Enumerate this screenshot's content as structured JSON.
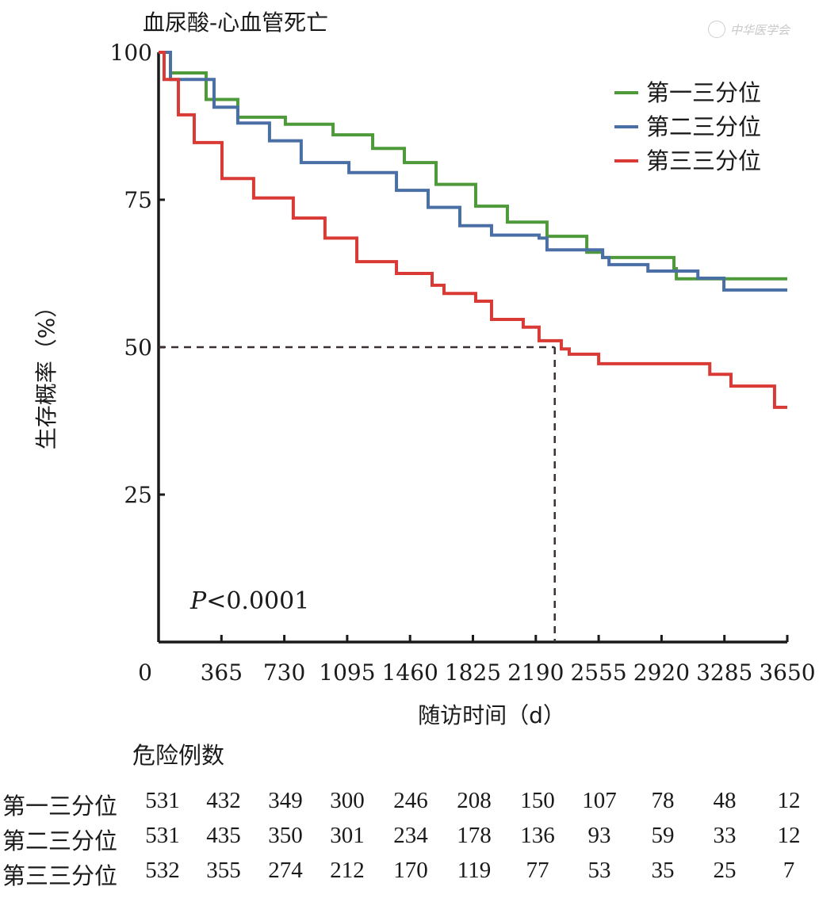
{
  "chart_data": {
    "type": "line",
    "subtype": "kaplan-meier step",
    "title": "血尿酸-心血管死亡",
    "xlabel": "随访时间（d）",
    "ylabel": "生存概率（%）",
    "xlim": [
      0,
      3650
    ],
    "ylim": [
      0,
      100
    ],
    "x_ticks": [
      0,
      365,
      730,
      1095,
      1460,
      1825,
      2190,
      2555,
      2920,
      3285,
      3650
    ],
    "x_tick_labels": [
      "0",
      "365",
      "730",
      "1095",
      "1460",
      "1825",
      "2190",
      "2555",
      "2920",
      "3285",
      "3650"
    ],
    "y_ticks": [
      25,
      50,
      75,
      100
    ],
    "y_tick_labels": [
      "25",
      "50",
      "75",
      "100"
    ],
    "grid": false,
    "legend_position": "top-right",
    "annotation": {
      "p_label": "P",
      "p_text": "<0.0001"
    },
    "median_line": {
      "y": 50,
      "x": 2300,
      "style": "dashed"
    },
    "series": [
      {
        "name": "第一三分位",
        "color": "#4e9a3a",
        "points": [
          [
            0,
            100
          ],
          [
            69,
            96.5
          ],
          [
            276,
            92
          ],
          [
            460,
            89
          ],
          [
            736,
            87.8
          ],
          [
            1013,
            86
          ],
          [
            1243,
            83.7
          ],
          [
            1427,
            81.3
          ],
          [
            1611,
            77.6
          ],
          [
            1841,
            73.9
          ],
          [
            2025,
            71.2
          ],
          [
            2255,
            68.8
          ],
          [
            2486,
            66.1
          ],
          [
            2578,
            65.2
          ],
          [
            2992,
            63.3
          ],
          [
            3006,
            61.6
          ],
          [
            3650,
            61.6
          ]
        ]
      },
      {
        "name": "第二三分位",
        "color": "#4a6fa5",
        "points": [
          [
            0,
            100
          ],
          [
            69,
            95.4
          ],
          [
            322,
            90.7
          ],
          [
            460,
            88
          ],
          [
            644,
            85
          ],
          [
            828,
            81.3
          ],
          [
            1105,
            79.6
          ],
          [
            1381,
            76.6
          ],
          [
            1565,
            73.7
          ],
          [
            1749,
            70.6
          ],
          [
            1933,
            69
          ],
          [
            2209,
            68.5
          ],
          [
            2255,
            66.5
          ],
          [
            2578,
            65.2
          ],
          [
            2615,
            64
          ],
          [
            2841,
            64
          ],
          [
            2841,
            62.9
          ],
          [
            3131,
            62.9
          ],
          [
            3131,
            61.7
          ],
          [
            3269,
            61.7
          ],
          [
            3282,
            59.7
          ],
          [
            3650,
            59.7
          ]
        ]
      },
      {
        "name": "第三三分位",
        "color": "#d93a35",
        "points": [
          [
            0,
            100
          ],
          [
            32,
            95.4
          ],
          [
            115,
            89.4
          ],
          [
            207,
            84.7
          ],
          [
            368,
            78.6
          ],
          [
            552,
            75.3
          ],
          [
            782,
            71.9
          ],
          [
            966,
            68.5
          ],
          [
            1151,
            64.5
          ],
          [
            1381,
            62.5
          ],
          [
            1588,
            60.5
          ],
          [
            1657,
            59.1
          ],
          [
            1841,
            57.8
          ],
          [
            1933,
            54.7
          ],
          [
            2117,
            53.4
          ],
          [
            2209,
            51.1
          ],
          [
            2338,
            49.7
          ],
          [
            2384,
            48.8
          ],
          [
            2509,
            48.8
          ],
          [
            2555,
            47.2
          ],
          [
            3200,
            47.2
          ],
          [
            3200,
            45.4
          ],
          [
            3323,
            45.4
          ],
          [
            3323,
            43.4
          ],
          [
            3576,
            43.4
          ],
          [
            3576,
            39.8
          ],
          [
            3650,
            39.8
          ]
        ]
      }
    ],
    "risk_table": {
      "title": "危险例数",
      "rows": [
        {
          "label": "第一三分位",
          "values": [
            "531",
            "432",
            "349",
            "300",
            "246",
            "208",
            "150",
            "107",
            "78",
            "48",
            "12"
          ]
        },
        {
          "label": "第二三分位",
          "values": [
            "531",
            "435",
            "350",
            "301",
            "234",
            "178",
            "136",
            "93",
            "59",
            "33",
            "12"
          ]
        },
        {
          "label": "第三三分位",
          "values": [
            "532",
            "355",
            "274",
            "212",
            "170",
            "119",
            "77",
            "53",
            "35",
            "25",
            "7"
          ]
        }
      ]
    }
  },
  "watermark": {
    "text": "中华医学会"
  }
}
